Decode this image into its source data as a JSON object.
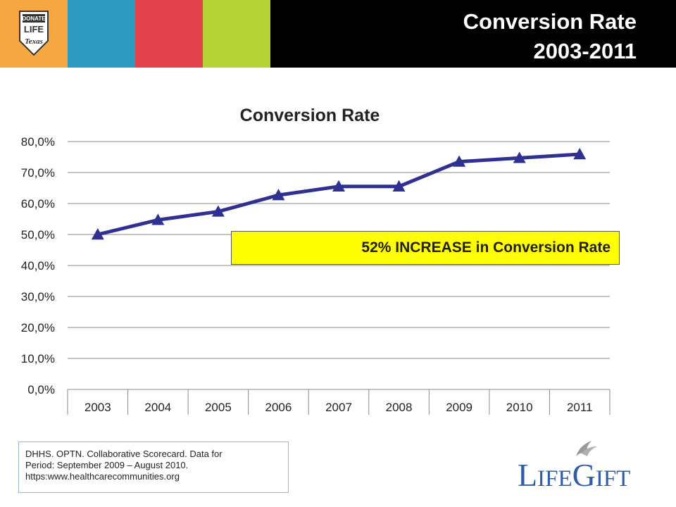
{
  "header": {
    "title_line1": "Conversion Rate",
    "title_line2": "2003-2011",
    "logo_text": {
      "line1": "DONATE",
      "line2": "LIFE",
      "line3": "Texas"
    }
  },
  "chart_data": {
    "type": "line",
    "title": "Conversion Rate",
    "categories": [
      "2003",
      "2004",
      "2005",
      "2006",
      "2007",
      "2008",
      "2009",
      "2010",
      "2011"
    ],
    "values": [
      0.5,
      0.547,
      0.574,
      0.627,
      0.655,
      0.655,
      0.735,
      0.747,
      0.759
    ],
    "ylim": [
      0,
      0.8
    ],
    "yticks": [
      "0,0%",
      "10,0%",
      "20,0%",
      "30,0%",
      "40,0%",
      "50,0%",
      "60,0%",
      "70,0%",
      "80,0%"
    ],
    "grid": true,
    "marker": "triangle",
    "line_color": "#2e3192"
  },
  "callout": {
    "text": "52% INCREASE in Conversion Rate",
    "color": "#ffff00"
  },
  "source": {
    "line1": "DHHS.  OPTN.  Collaborative Scorecard.  Data for",
    "line2": "Period:  September 2009 – August 2010.",
    "line3": "https:www.healthcarecommunities.org"
  },
  "brand": {
    "logo_text": "LifeGift",
    "color": "#2f5da8"
  }
}
